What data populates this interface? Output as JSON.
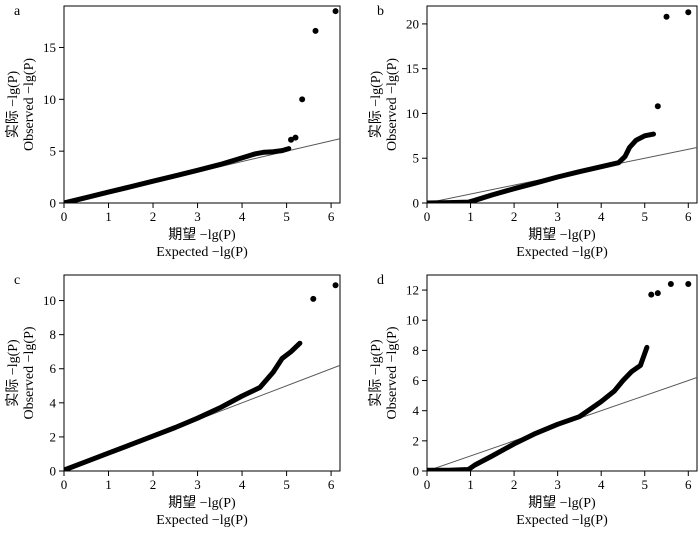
{
  "chart_data": [
    {
      "panel_label": "a",
      "type": "scatter",
      "xlabel_cn": "期望 −lg(P)",
      "xlabel_en": "Expected −lg(P)",
      "ylabel_cn": "实际 −lg(P)",
      "ylabel_en": "Observed −lg(P)",
      "xlim": [
        0,
        6.2
      ],
      "ylim": [
        0,
        19
      ],
      "xticks": [
        0,
        1,
        2,
        3,
        4,
        5,
        6
      ],
      "yticks": [
        0,
        5,
        10,
        15
      ],
      "reference_line": [
        [
          0,
          0
        ],
        [
          6.2,
          6.2
        ]
      ],
      "curve": [
        [
          0,
          0
        ],
        [
          0.5,
          0.52
        ],
        [
          1,
          1.05
        ],
        [
          1.5,
          1.57
        ],
        [
          2,
          2.1
        ],
        [
          2.5,
          2.62
        ],
        [
          3,
          3.15
        ],
        [
          3.5,
          3.7
        ],
        [
          4,
          4.35
        ],
        [
          4.3,
          4.75
        ],
        [
          4.5,
          4.9
        ],
        [
          4.7,
          4.95
        ],
        [
          4.9,
          5.05
        ],
        [
          5.05,
          5.25
        ]
      ],
      "outliers": [
        [
          5.1,
          6.1
        ],
        [
          5.2,
          6.3
        ],
        [
          5.35,
          10.0
        ],
        [
          5.65,
          16.6
        ],
        [
          6.1,
          18.5
        ]
      ]
    },
    {
      "panel_label": "b",
      "type": "scatter",
      "xlabel_cn": "期望 −lg(P)",
      "xlabel_en": "Expected −lg(P)",
      "ylabel_cn": "实际 −lg(P)",
      "ylabel_en": "Observed −lg(P)",
      "xlim": [
        0,
        6.2
      ],
      "ylim": [
        0,
        22
      ],
      "xticks": [
        0,
        1,
        2,
        3,
        4,
        5,
        6
      ],
      "yticks": [
        0,
        5,
        10,
        15,
        20
      ],
      "reference_line": [
        [
          0,
          0
        ],
        [
          6.2,
          6.2
        ]
      ],
      "curve": [
        [
          0,
          0
        ],
        [
          0.5,
          0.05
        ],
        [
          0.95,
          0.1
        ],
        [
          1.1,
          0.3
        ],
        [
          1.5,
          0.9
        ],
        [
          2,
          1.6
        ],
        [
          2.5,
          2.25
        ],
        [
          3,
          2.9
        ],
        [
          3.5,
          3.5
        ],
        [
          4,
          4.05
        ],
        [
          4.4,
          4.5
        ],
        [
          4.55,
          5.2
        ],
        [
          4.65,
          6.2
        ],
        [
          4.8,
          7.0
        ],
        [
          5,
          7.5
        ],
        [
          5.2,
          7.7
        ]
      ],
      "outliers": [
        [
          5.3,
          10.8
        ],
        [
          5.5,
          20.8
        ],
        [
          6.0,
          21.3
        ]
      ]
    },
    {
      "panel_label": "c",
      "type": "scatter",
      "xlabel_cn": "期望 −lg(P)",
      "xlabel_en": "Expected −lg(P)",
      "ylabel_cn": "实际 −lg(P)",
      "ylabel_en": "Observed −lg(P)",
      "xlim": [
        0,
        6.2
      ],
      "ylim": [
        0,
        11.5
      ],
      "xticks": [
        0,
        1,
        2,
        3,
        4,
        5,
        6
      ],
      "yticks": [
        0,
        2,
        4,
        6,
        8,
        10
      ],
      "reference_line": [
        [
          0,
          0
        ],
        [
          6.2,
          6.2
        ]
      ],
      "curve": [
        [
          0,
          0.05
        ],
        [
          0.5,
          0.55
        ],
        [
          1,
          1.05
        ],
        [
          1.5,
          1.55
        ],
        [
          2,
          2.05
        ],
        [
          2.5,
          2.55
        ],
        [
          3,
          3.1
        ],
        [
          3.5,
          3.7
        ],
        [
          4,
          4.4
        ],
        [
          4.4,
          4.9
        ],
        [
          4.7,
          5.8
        ],
        [
          4.9,
          6.6
        ],
        [
          5.1,
          7.0
        ],
        [
          5.3,
          7.5
        ]
      ],
      "outliers": [
        [
          5.6,
          10.1
        ],
        [
          6.1,
          10.9
        ]
      ]
    },
    {
      "panel_label": "d",
      "type": "scatter",
      "xlabel_cn": "期望 −lg(P)",
      "xlabel_en": "Expected −lg(P)",
      "ylabel_cn": "实际 −lg(P)",
      "ylabel_en": "Observed −lg(P)",
      "xlim": [
        0,
        6.2
      ],
      "ylim": [
        0,
        13
      ],
      "xticks": [
        0,
        1,
        2,
        3,
        4,
        5,
        6
      ],
      "yticks": [
        0,
        2,
        4,
        6,
        8,
        10,
        12
      ],
      "reference_line": [
        [
          0,
          0
        ],
        [
          6.2,
          6.2
        ]
      ],
      "curve": [
        [
          0,
          0.05
        ],
        [
          0.5,
          0.05
        ],
        [
          0.95,
          0.1
        ],
        [
          1.1,
          0.4
        ],
        [
          1.5,
          1.0
        ],
        [
          2,
          1.8
        ],
        [
          2.5,
          2.5
        ],
        [
          3,
          3.1
        ],
        [
          3.5,
          3.6
        ],
        [
          4,
          4.6
        ],
        [
          4.3,
          5.3
        ],
        [
          4.5,
          6.0
        ],
        [
          4.7,
          6.6
        ],
        [
          4.9,
          7.0
        ],
        [
          5.05,
          8.2
        ]
      ],
      "outliers": [
        [
          5.15,
          11.7
        ],
        [
          5.3,
          11.8
        ],
        [
          5.6,
          12.4
        ],
        [
          6.0,
          12.4
        ]
      ]
    }
  ]
}
